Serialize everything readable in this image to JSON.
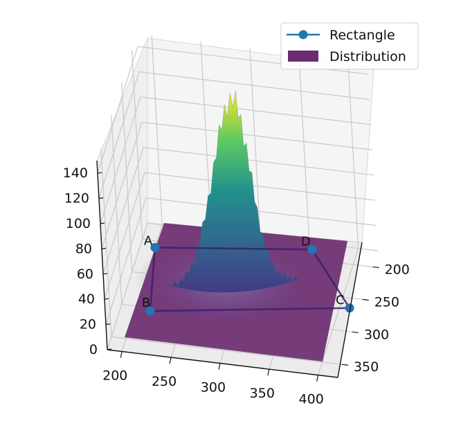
{
  "chart_data": {
    "type": "surface3d",
    "title": "",
    "x_axis": {
      "ticks": [
        "200",
        "250",
        "300",
        "350",
        "400"
      ],
      "range": [
        185,
        420
      ]
    },
    "y_axis": {
      "ticks": [
        "200",
        "250",
        "300",
        "350"
      ],
      "range": [
        175,
        370
      ]
    },
    "z_axis": {
      "ticks": [
        "0",
        "20",
        "40",
        "60",
        "80",
        "100",
        "120",
        "140"
      ],
      "range": [
        0,
        150
      ]
    },
    "grid": true,
    "legend": {
      "position": "upper-right",
      "entries": [
        {
          "label": "Rectangle",
          "kind": "line-marker",
          "color": "#1f77b4"
        },
        {
          "label": "Distribution",
          "kind": "patch",
          "color": "#6b2c70"
        }
      ]
    },
    "series": [
      {
        "name": "Rectangle",
        "kind": "closed-polygon",
        "points": [
          {
            "label": "A",
            "x": 200,
            "y": 210,
            "z": 0
          },
          {
            "label": "B",
            "x": 215,
            "y": 305,
            "z": 0
          },
          {
            "label": "C",
            "x": 410,
            "y": 265,
            "z": 0
          },
          {
            "label": "D",
            "x": 355,
            "y": 185,
            "z": 0
          }
        ]
      },
      {
        "name": "Distribution",
        "kind": "surface",
        "peak": {
          "x": 300,
          "y": 255,
          "z": 150
        },
        "colormap": "viridis"
      }
    ]
  }
}
